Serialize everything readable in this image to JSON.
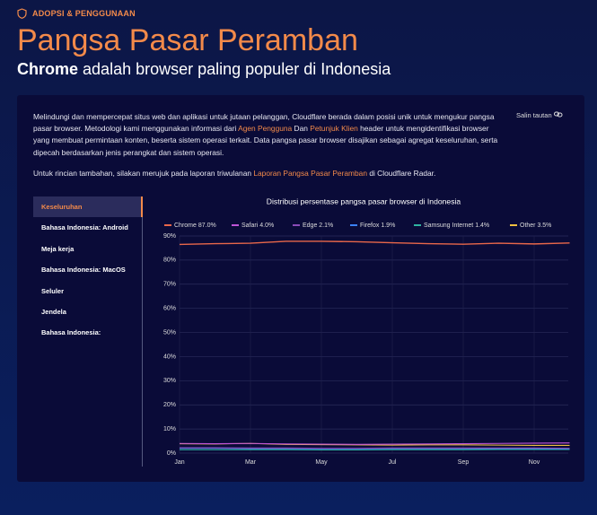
{
  "header": {
    "eyebrow": "ADOPSI & PENGGUNAAN",
    "title": "Pangsa Pasar Peramban",
    "subtitle_bold": "Chrome",
    "subtitle_rest": "adalah browser paling populer di Indonesia"
  },
  "card": {
    "copy_link": "Salin tautan",
    "paragraph1": [
      "Melindungi dan mempercepat situs web dan aplikasi untuk jutaan pelanggan, Cloudflare berada dalam posisi unik untuk mengukur pangsa pasar browser. Metodologi kami menggunakan informasi dari",
      "Agen Pengguna",
      "Dan",
      "Petunjuk Klien",
      "header untuk mengidentifikasi browser yang membuat permintaan konten, beserta sistem operasi terkait. Data pangsa pasar browser disajikan sebagai agregat keseluruhan, serta dipecah berdasarkan jenis perangkat dan sistem operasi."
    ],
    "paragraph2": [
      "Untuk rincian tambahan, silakan merujuk pada laporan triwulanan",
      "Laporan Pangsa Pasar Peramban",
      "di Cloudflare Radar."
    ],
    "menu": [
      "Keseluruhan",
      "Bahasa Indonesia: Android",
      "Meja kerja",
      "Bahasa Indonesia: MacOS",
      "Seluler",
      "Jendela",
      "Bahasa Indonesia:"
    ]
  },
  "chart_data": {
    "type": "line",
    "title": "Distribusi persentase pangsa pasar browser di Indonesia",
    "categories": [
      "Jan",
      null,
      "Mar",
      null,
      "May",
      null,
      "Jul",
      null,
      "Sep",
      null,
      "Nov",
      null
    ],
    "series": [
      {
        "name": "Chrome 87.0%",
        "color": "#e8674a",
        "values": [
          86.5,
          86.8,
          87.0,
          87.8,
          87.8,
          87.6,
          87.2,
          86.8,
          86.6,
          87.0,
          86.7,
          87.1
        ]
      },
      {
        "name": "Safari 4.0%",
        "color": "#c054d8",
        "values": [
          4.0,
          3.9,
          4.0,
          3.8,
          3.7,
          3.6,
          3.7,
          3.8,
          3.9,
          4.0,
          4.1,
          4.2
        ]
      },
      {
        "name": "Edge 2.1%",
        "color": "#8b4bb8",
        "values": [
          2.2,
          2.2,
          2.1,
          2.1,
          2.0,
          2.0,
          2.1,
          2.1,
          2.1,
          2.1,
          2.1,
          2.0
        ]
      },
      {
        "name": "Firefox 1.9%",
        "color": "#3b82f6",
        "values": [
          2.0,
          2.0,
          1.9,
          1.9,
          1.8,
          1.8,
          1.9,
          1.9,
          1.9,
          1.9,
          1.9,
          1.8
        ]
      },
      {
        "name": "Samsung Internet 1.4%",
        "color": "#2fb3a0",
        "values": [
          1.4,
          1.4,
          1.4,
          1.4,
          1.3,
          1.3,
          1.4,
          1.4,
          1.4,
          1.5,
          1.5,
          1.5
        ]
      },
      {
        "name": "Other 3.5%",
        "color": "#f0c040",
        "values": [
          3.9,
          3.8,
          4.0,
          3.6,
          3.5,
          3.4,
          3.3,
          3.4,
          3.4,
          3.3,
          3.2,
          3.2
        ]
      }
    ],
    "ylim": [
      0,
      90
    ],
    "yticks": [
      {
        "value": 0,
        "label": "0%"
      },
      {
        "value": 10,
        "label": "10%"
      },
      {
        "value": 20,
        "label": "20%"
      },
      {
        "value": 30,
        "label": "30%"
      },
      {
        "value": 40,
        "label": "40%"
      },
      {
        "value": 50,
        "label": "50%"
      },
      {
        "value": 60,
        "label": "60%"
      },
      {
        "value": 70,
        "label": "70%"
      },
      {
        "value": 80,
        "label": "80%"
      },
      {
        "value": 90,
        "label": "90%"
      }
    ],
    "grid": true
  }
}
